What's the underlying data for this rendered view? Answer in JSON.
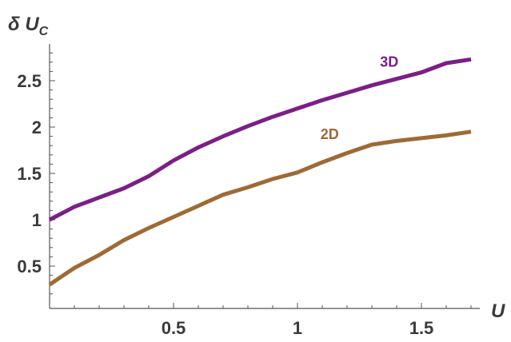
{
  "chart_data": {
    "type": "line",
    "title": "",
    "xlabel": "U",
    "ylabel_main": "δ U",
    "ylabel_sub": "C",
    "xlim": [
      0,
      1.72
    ],
    "ylim": [
      0.2,
      2.85
    ],
    "xticks": [
      0.5,
      1,
      1.5
    ],
    "xtick_labels": [
      "0.5",
      "1",
      "1.5"
    ],
    "yticks": [
      0.5,
      1,
      1.5,
      2,
      2.5
    ],
    "ytick_labels": [
      "0.5",
      "1",
      "1.5",
      "2",
      "2.5"
    ],
    "grid": false,
    "legend": "none",
    "series": [
      {
        "name": "3D",
        "color": "#7b1f86",
        "x": [
          0,
          0.1,
          0.2,
          0.3,
          0.4,
          0.5,
          0.6,
          0.7,
          0.8,
          0.9,
          1.0,
          1.1,
          1.2,
          1.3,
          1.4,
          1.5,
          1.6,
          1.7
        ],
        "y": [
          1.0,
          1.14,
          1.24,
          1.34,
          1.47,
          1.64,
          1.78,
          1.9,
          2.01,
          2.11,
          2.2,
          2.29,
          2.37,
          2.45,
          2.52,
          2.59,
          2.69,
          2.73
        ]
      },
      {
        "name": "2D",
        "color": "#9e6a35",
        "x": [
          0,
          0.1,
          0.2,
          0.3,
          0.4,
          0.5,
          0.6,
          0.7,
          0.8,
          0.9,
          1.0,
          1.1,
          1.2,
          1.3,
          1.4,
          1.5,
          1.6,
          1.7
        ],
        "y": [
          0.3,
          0.48,
          0.62,
          0.78,
          0.91,
          1.03,
          1.15,
          1.27,
          1.35,
          1.44,
          1.51,
          1.62,
          1.72,
          1.81,
          1.85,
          1.88,
          1.91,
          1.95
        ]
      }
    ],
    "series_labels": [
      {
        "text": "3D",
        "x": 1.37,
        "y": 2.65,
        "color": "#7b1f86"
      },
      {
        "text": "2D",
        "x": 1.13,
        "y": 1.87,
        "color": "#9e6a35"
      }
    ]
  }
}
